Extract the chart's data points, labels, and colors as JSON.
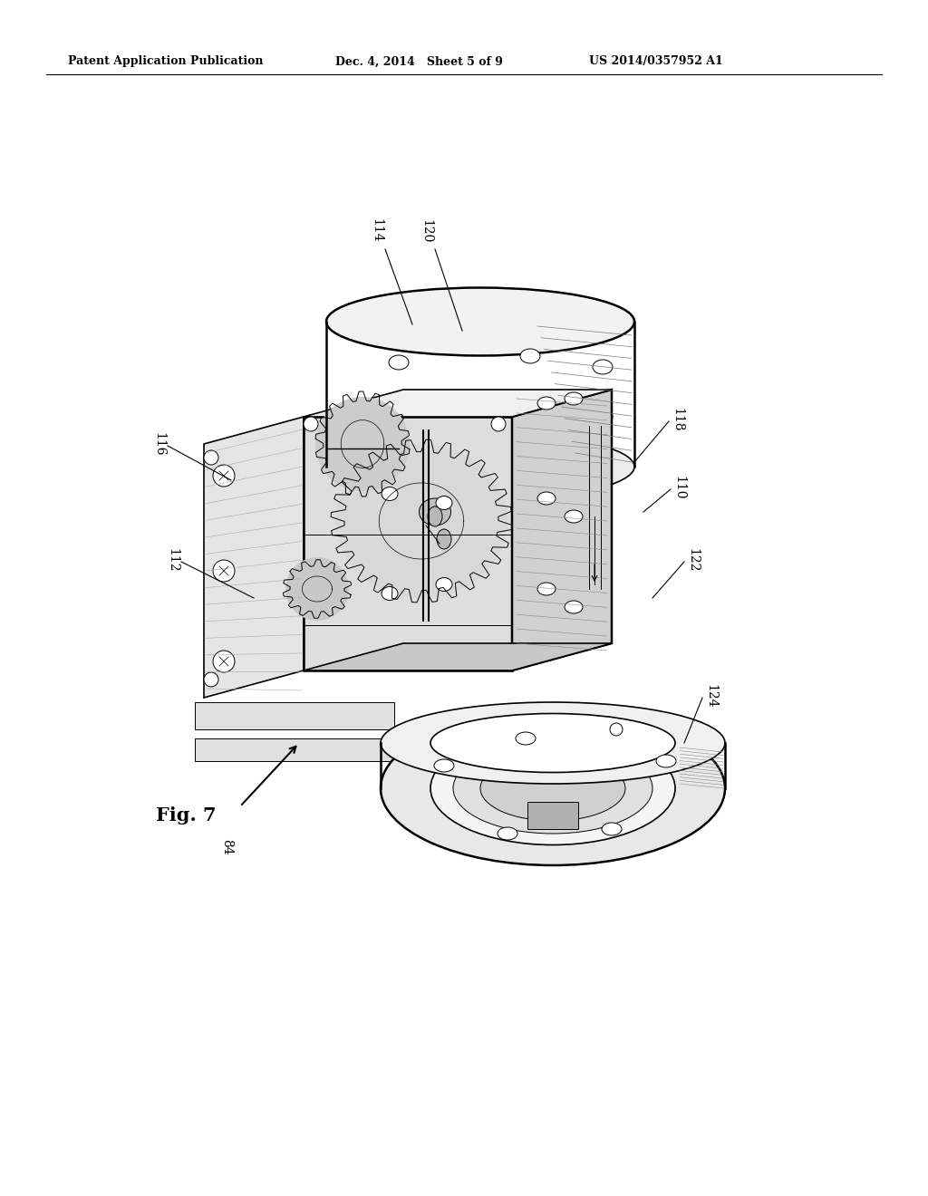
{
  "bg_color": "#ffffff",
  "header_left": "Patent Application Publication",
  "header_mid": "Dec. 4, 2014   Sheet 5 of 9",
  "header_right": "US 2014/0357952 A1",
  "fig_label": "Fig. 7",
  "fig_number": "84",
  "figsize": [
    10.24,
    13.2
  ],
  "dpi": 100,
  "label_fontsize": 10,
  "header_fontsize": 9
}
